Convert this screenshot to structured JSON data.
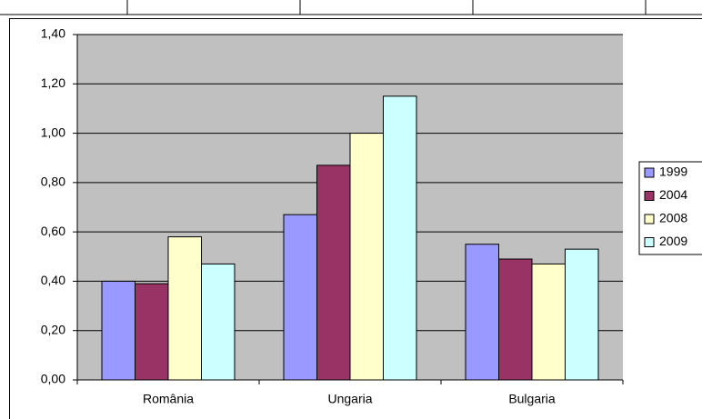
{
  "chart_data": {
    "type": "bar",
    "categories": [
      "România",
      "Ungaria",
      "Bulgaria"
    ],
    "series": [
      {
        "name": "1999",
        "color": "#9999ff",
        "values": [
          0.4,
          0.67,
          0.55
        ]
      },
      {
        "name": "2004",
        "color": "#993366",
        "values": [
          0.39,
          0.87,
          0.49
        ]
      },
      {
        "name": "2008",
        "color": "#ffffcc",
        "values": [
          0.58,
          1.0,
          0.47
        ]
      },
      {
        "name": "2009",
        "color": "#ccffff",
        "values": [
          0.47,
          1.15,
          0.53
        ]
      }
    ],
    "ylim": [
      0,
      1.4
    ],
    "yticks": [
      {
        "value": 0,
        "label": "0,00"
      },
      {
        "value": 0.2,
        "label": "0,20"
      },
      {
        "value": 0.4,
        "label": "0,40"
      },
      {
        "value": 0.6,
        "label": "0,60"
      },
      {
        "value": 0.8,
        "label": "0,80"
      },
      {
        "value": 1.0,
        "label": "1,00"
      },
      {
        "value": 1.2,
        "label": "1,20"
      },
      {
        "value": 1.4,
        "label": "1,40"
      }
    ],
    "grid": true,
    "plot_background": "#c0c0c0",
    "legend": "right"
  }
}
